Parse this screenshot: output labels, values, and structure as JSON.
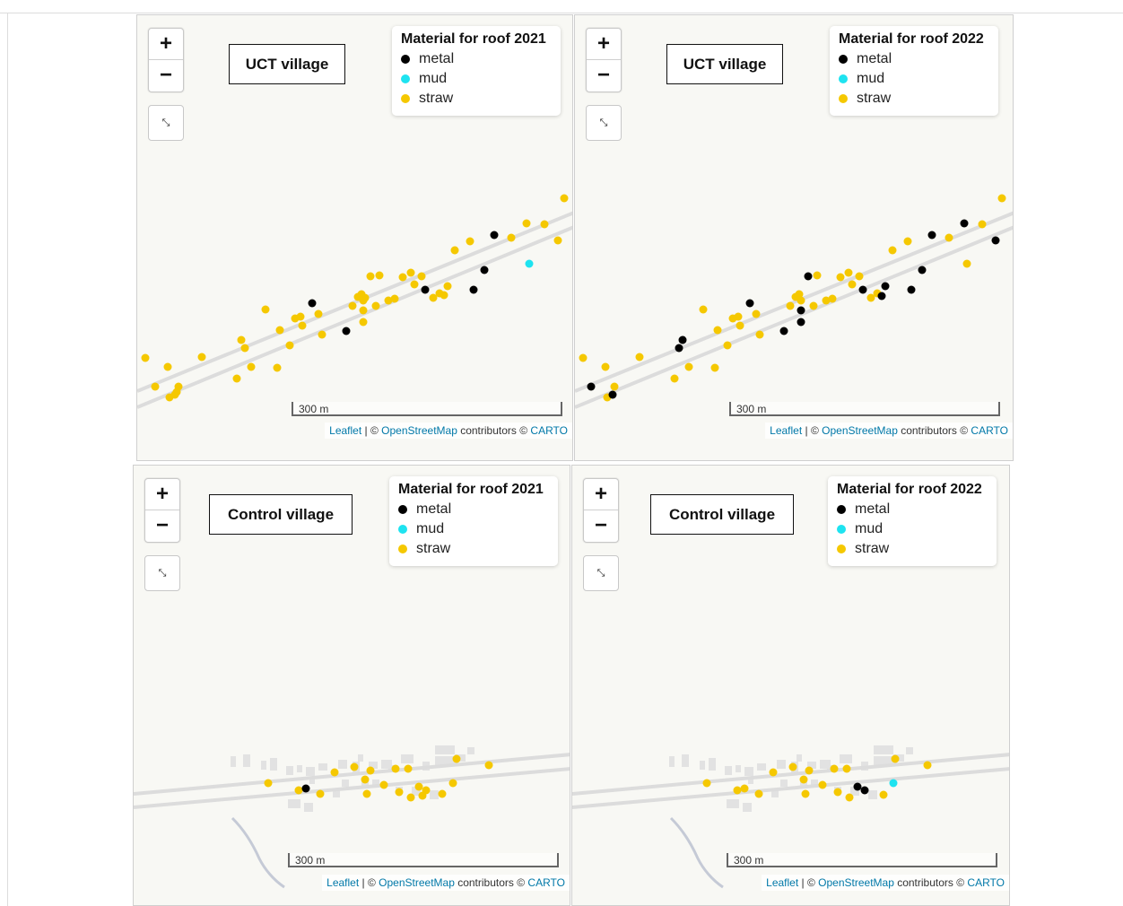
{
  "colors": {
    "metal": "#000000",
    "mud": "#1ee3f0",
    "straw": "#f5c800",
    "road": "#dcdcdc",
    "building": "#e2e2e2",
    "stream": "#c5cad6"
  },
  "zoom": {
    "in_label": "+",
    "out_label": "−"
  },
  "fullscreen_icon": "⤡",
  "legend_items": [
    {
      "key": "metal",
      "label": "metal"
    },
    {
      "key": "mud",
      "label": "mud"
    },
    {
      "key": "straw",
      "label": "straw"
    }
  ],
  "scale_label": "300 m",
  "attribution": {
    "leaflet": "Leaflet",
    "sep1": " | © ",
    "osm": "OpenStreetMap",
    "contrib": " contributors © ",
    "carto": "CARTO"
  },
  "maps": [
    {
      "village_label": "UCT village",
      "legend_title": "Material for roof 2021"
    },
    {
      "village_label": "UCT village",
      "legend_title": "Material for roof 2022"
    },
    {
      "village_label": "Control village",
      "legend_title": "Material for roof 2021"
    },
    {
      "village_label": "Control village",
      "legend_title": "Material for roof 2022"
    }
  ]
}
